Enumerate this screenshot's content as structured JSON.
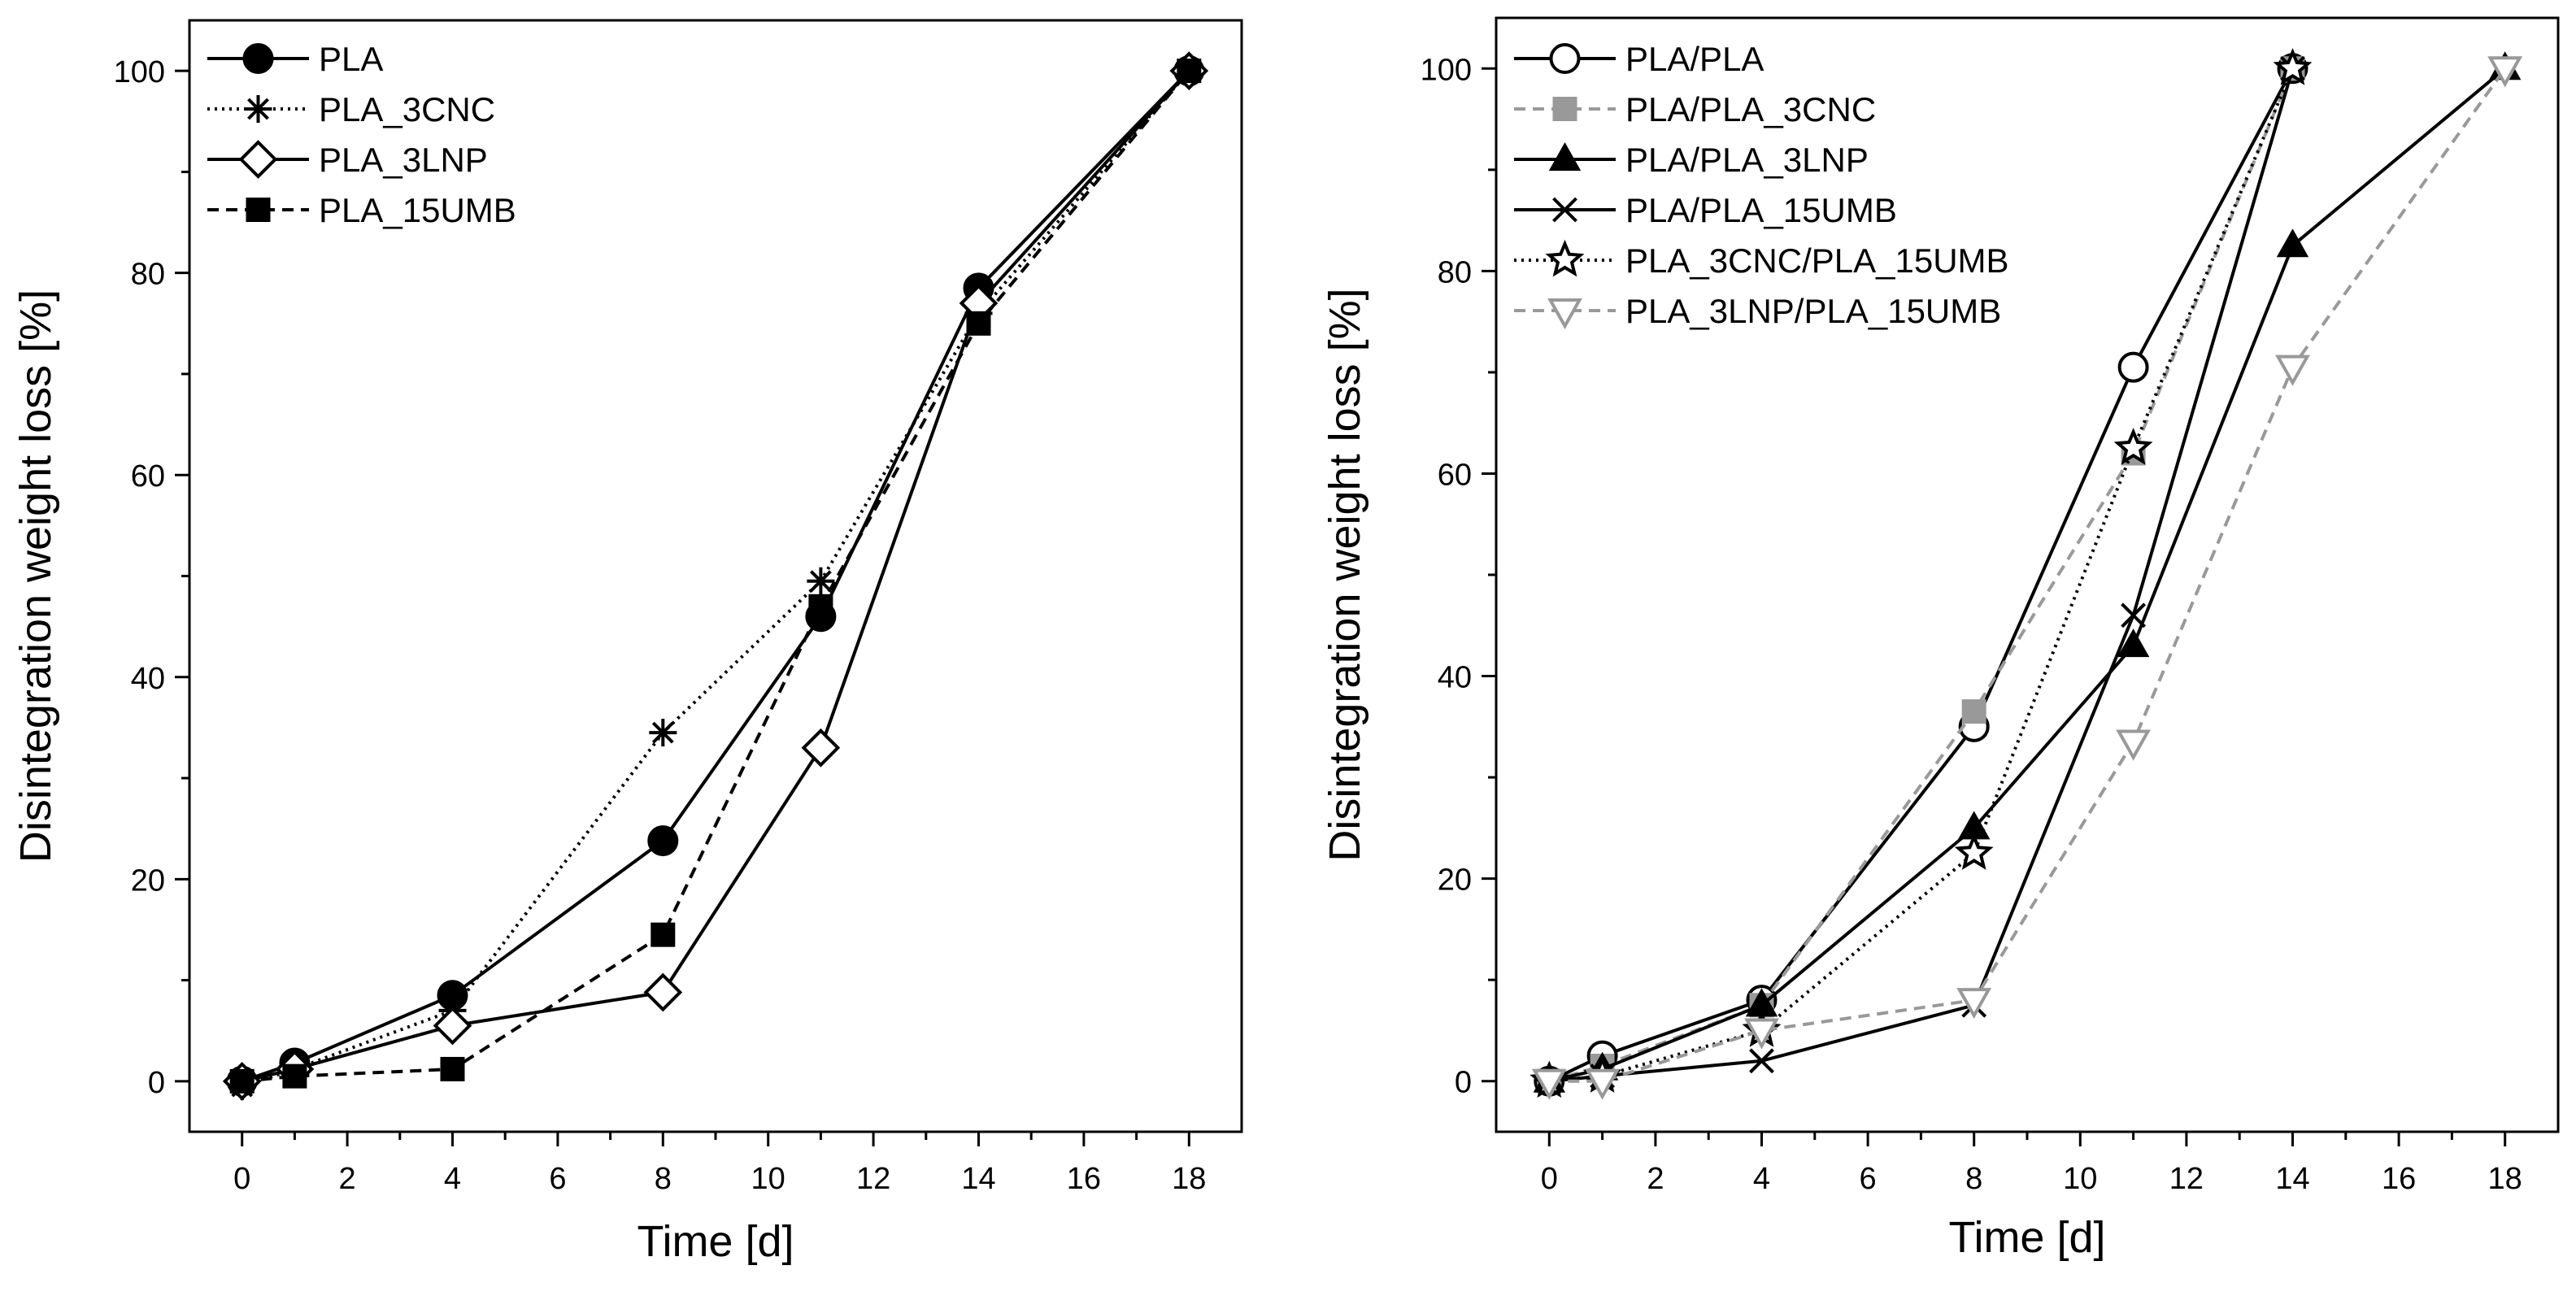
{
  "chart_data": [
    {
      "type": "line",
      "id": "left",
      "xlabel": "Time [d]",
      "ylabel": "Disintegration weight loss [%]",
      "xlim": [
        -1,
        19
      ],
      "ylim": [
        -5,
        105
      ],
      "xticks": [
        0,
        2,
        4,
        6,
        8,
        10,
        12,
        14,
        16,
        18
      ],
      "yticks": [
        0,
        20,
        40,
        60,
        80,
        100
      ],
      "legend_position": "top-left",
      "series": [
        {
          "name": "PLA",
          "x": [
            0,
            1,
            4,
            8,
            11,
            14,
            18
          ],
          "values": [
            0,
            1.8,
            8.5,
            23.8,
            46,
            78.5,
            100
          ],
          "color": "#000000",
          "dash": "solid",
          "marker": "circle-filled"
        },
        {
          "name": "PLA_3CNC",
          "x": [
            0,
            1,
            4,
            8,
            11,
            14,
            18
          ],
          "values": [
            -0.5,
            1.2,
            7,
            34.5,
            49.5,
            76,
            100
          ],
          "color": "#000000",
          "dash": "dotted",
          "marker": "asterisk"
        },
        {
          "name": "PLA_3LNP",
          "x": [
            0,
            1,
            4,
            8,
            11,
            14,
            18
          ],
          "values": [
            0,
            1.2,
            5.5,
            8.8,
            33,
            77,
            100
          ],
          "color": "#000000",
          "dash": "solid",
          "marker": "diamond-open"
        },
        {
          "name": "PLA_15UMB",
          "x": [
            0,
            1,
            4,
            8,
            11,
            14,
            18
          ],
          "values": [
            0,
            0.5,
            1.2,
            14.5,
            47,
            75,
            100
          ],
          "color": "#000000",
          "dash": "dashed",
          "marker": "square-filled"
        }
      ]
    },
    {
      "type": "line",
      "id": "right",
      "xlabel": "Time [d]",
      "ylabel": "Disintegration weight loss [%]",
      "xlim": [
        -1,
        19
      ],
      "ylim": [
        -5,
        105
      ],
      "xticks": [
        0,
        2,
        4,
        6,
        8,
        10,
        12,
        14,
        16,
        18
      ],
      "yticks": [
        0,
        20,
        40,
        60,
        80,
        100
      ],
      "legend_position": "top-left",
      "series": [
        {
          "name": "PLA/PLA",
          "x": [
            0,
            1,
            4,
            8,
            11,
            14
          ],
          "values": [
            0,
            2.5,
            8,
            35,
            70.5,
            100
          ],
          "color": "#000000",
          "dash": "solid",
          "marker": "circle-open"
        },
        {
          "name": "PLA/PLA_3CNC",
          "x": [
            0,
            1,
            4,
            8,
            11,
            14
          ],
          "values": [
            0,
            1.5,
            7.5,
            36.5,
            62,
            100
          ],
          "color": "#999999",
          "dash": "dashed",
          "marker": "square-filled"
        },
        {
          "name": "PLA/PLA_3LNP",
          "x": [
            0,
            1,
            4,
            8,
            11,
            14,
            18
          ],
          "values": [
            0,
            1.2,
            7.5,
            25,
            43,
            82.5,
            100
          ],
          "color": "#000000",
          "dash": "solid",
          "marker": "triangle-up-filled"
        },
        {
          "name": "PLA/PLA_15UMB",
          "x": [
            0,
            1,
            4,
            8,
            11,
            14
          ],
          "values": [
            0,
            0.5,
            2,
            7.5,
            46,
            100
          ],
          "color": "#000000",
          "dash": "solid",
          "marker": "x"
        },
        {
          "name": "PLA_3CNC/PLA_15UMB",
          "x": [
            0,
            1,
            4,
            8,
            11,
            14
          ],
          "values": [
            0,
            0.5,
            5,
            22.5,
            62.5,
            100
          ],
          "color": "#000000",
          "dash": "dotted",
          "marker": "star-open"
        },
        {
          "name": "PLA_3LNP/PLA_15UMB",
          "x": [
            0,
            1,
            4,
            8,
            11,
            14,
            18
          ],
          "values": [
            0,
            0,
            5,
            8,
            33.5,
            70.5,
            100
          ],
          "color": "#999999",
          "dash": "dashed",
          "marker": "triangle-down-open"
        }
      ]
    }
  ]
}
